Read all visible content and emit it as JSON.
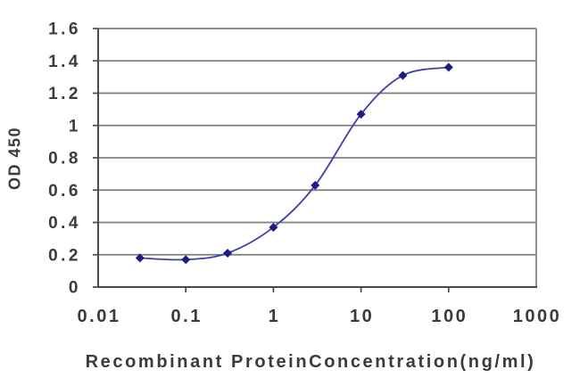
{
  "chart_data": {
    "type": "line",
    "x": [
      0.03,
      0.1,
      0.3,
      1,
      3,
      10,
      30,
      100
    ],
    "values": [
      0.18,
      0.17,
      0.21,
      0.37,
      0.63,
      1.07,
      1.31,
      1.36
    ],
    "title": "",
    "xlabel": "Recombinant ProteinConcentration(ng/ml)",
    "ylabel": "OD 450",
    "x_scale": "log",
    "xlim": [
      0.01,
      1000
    ],
    "ylim": [
      0,
      1.6
    ],
    "y_ticks": [
      0,
      0.2,
      0.4,
      0.6,
      0.8,
      1,
      1.2,
      1.4,
      1.6
    ],
    "y_tick_labels": [
      "0",
      "0.2",
      "0.4",
      "0.6",
      "0.8",
      "1",
      "1.2",
      "1.4",
      "1.6"
    ],
    "x_ticks": [
      0.01,
      0.1,
      1,
      10,
      100,
      1000
    ],
    "x_tick_labels": [
      "0.01",
      "0.1",
      "1",
      "10",
      "100",
      "1000"
    ],
    "grid": "horizontal",
    "legend": "none",
    "marker": "diamond",
    "line_smoothing": true,
    "colors": {
      "line": "#4040a6",
      "marker": "#1c1c82",
      "grid": "#7d7d7d",
      "axis": "#4a4a4a",
      "text": "#3b3b3b"
    }
  }
}
